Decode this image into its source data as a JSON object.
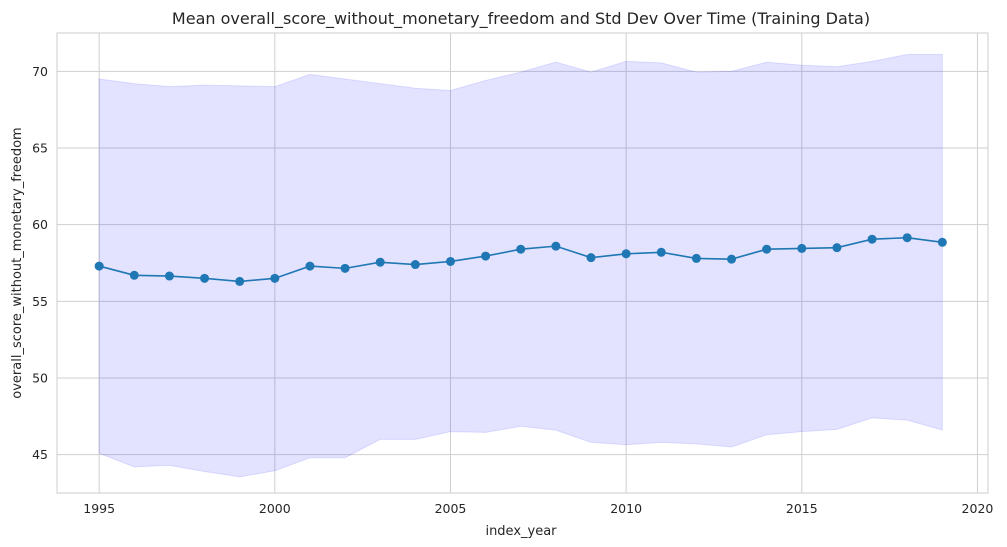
{
  "chart_data": {
    "type": "line",
    "title": "Mean overall_score_without_monetary_freedom and Std Dev Over Time (Training Data)",
    "xlabel": "index_year",
    "ylabel": "overall_score_without_monetary_freedom",
    "xlim": [
      1993.8,
      2020.3
    ],
    "ylim": [
      42.5,
      72.5
    ],
    "xticks": [
      1995,
      2000,
      2005,
      2010,
      2015,
      2020
    ],
    "yticks": [
      45,
      50,
      55,
      60,
      65,
      70
    ],
    "grid": true,
    "x": [
      1995,
      1996,
      1997,
      1998,
      1999,
      2000,
      2001,
      2002,
      2003,
      2004,
      2005,
      2006,
      2007,
      2008,
      2009,
      2010,
      2011,
      2012,
      2013,
      2014,
      2015,
      2016,
      2017,
      2018,
      2019
    ],
    "series": [
      {
        "values": [
          57.3,
          56.7,
          56.65,
          56.5,
          56.3,
          56.5,
          57.3,
          57.15,
          57.55,
          57.4,
          57.6,
          57.95,
          58.4,
          58.6,
          57.85,
          58.1,
          58.2,
          57.8,
          57.75,
          58.4,
          58.45,
          58.5,
          59.05,
          59.15,
          58.85
        ],
        "upper": [
          69.5,
          69.2,
          69.0,
          69.1,
          69.05,
          69.0,
          69.8,
          69.5,
          69.2,
          68.9,
          68.75,
          69.4,
          69.95,
          70.6,
          69.95,
          70.65,
          70.55,
          69.95,
          70.0,
          70.6,
          70.4,
          70.3,
          70.65,
          71.1,
          71.1
        ],
        "lower": [
          45.1,
          44.2,
          44.3,
          43.9,
          43.55,
          43.95,
          44.8,
          44.8,
          46.0,
          46.0,
          46.5,
          46.45,
          46.85,
          46.6,
          45.8,
          45.65,
          45.8,
          45.7,
          45.5,
          46.3,
          46.5,
          46.65,
          47.4,
          47.25,
          46.6
        ],
        "color": "#1f77b4",
        "band_color": "#0000ff"
      }
    ]
  }
}
